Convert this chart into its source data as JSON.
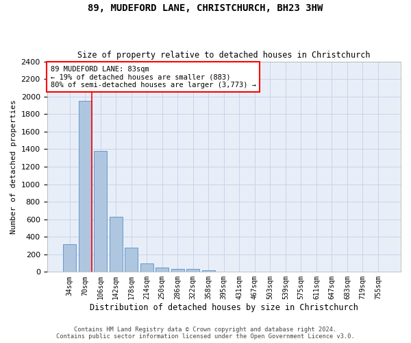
{
  "title": "89, MUDEFORD LANE, CHRISTCHURCH, BH23 3HW",
  "subtitle": "Size of property relative to detached houses in Christchurch",
  "xlabel": "Distribution of detached houses by size in Christchurch",
  "ylabel": "Number of detached properties",
  "footer_line1": "Contains HM Land Registry data © Crown copyright and database right 2024.",
  "footer_line2": "Contains public sector information licensed under the Open Government Licence v3.0.",
  "bar_labels": [
    "34sqm",
    "70sqm",
    "106sqm",
    "142sqm",
    "178sqm",
    "214sqm",
    "250sqm",
    "286sqm",
    "322sqm",
    "358sqm",
    "395sqm",
    "431sqm",
    "467sqm",
    "503sqm",
    "539sqm",
    "575sqm",
    "611sqm",
    "647sqm",
    "683sqm",
    "719sqm",
    "755sqm"
  ],
  "bar_values": [
    315,
    1950,
    1380,
    630,
    275,
    100,
    48,
    35,
    30,
    22,
    0,
    0,
    0,
    0,
    0,
    0,
    0,
    0,
    0,
    0,
    0
  ],
  "bar_color": "#aec6df",
  "bar_edgecolor": "#6699cc",
  "grid_color": "#c8d4e8",
  "background_color": "#e8eef8",
  "annotation_line1": "89 MUDEFORD LANE: 83sqm",
  "annotation_line2": "← 19% of detached houses are smaller (883)",
  "annotation_line3": "80% of semi-detached houses are larger (3,773) →",
  "annotation_box_edgecolor": "red",
  "vline_color": "red",
  "vline_pos": 1.42,
  "ylim": [
    0,
    2400
  ],
  "yticks": [
    0,
    200,
    400,
    600,
    800,
    1000,
    1200,
    1400,
    1600,
    1800,
    2000,
    2200,
    2400
  ]
}
